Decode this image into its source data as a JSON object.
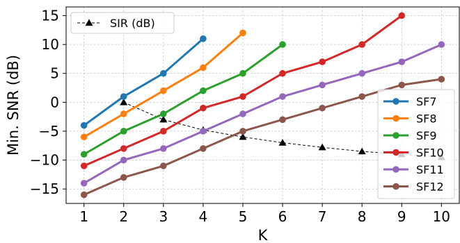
{
  "chart_data": {
    "type": "line",
    "title": "",
    "xlabel": "K",
    "ylabel": "Min. SNR (dB)",
    "xlim": [
      0.55,
      10.45
    ],
    "ylim": [
      -17.5,
      16.5
    ],
    "xticks": [
      1,
      2,
      3,
      4,
      5,
      6,
      7,
      8,
      9,
      10
    ],
    "yticks": [
      -15,
      -10,
      -5,
      0,
      5,
      10,
      15
    ],
    "grid": true,
    "legends": [
      {
        "placement": "upper-left",
        "entries": [
          "SIR (dB)"
        ]
      },
      {
        "placement": "lower-right",
        "entries": [
          "SF7",
          "SF8",
          "SF9",
          "SF10",
          "SF11",
          "SF12"
        ]
      }
    ],
    "series": [
      {
        "name": "SF7",
        "color": "#1f77b4",
        "marker": "circle",
        "x": [
          1,
          2,
          3,
          4
        ],
        "values": [
          -4,
          1,
          5,
          11
        ]
      },
      {
        "name": "SF8",
        "color": "#ff7f0e",
        "marker": "circle",
        "x": [
          1,
          2,
          3,
          4,
          5
        ],
        "values": [
          -6,
          -2,
          2,
          6,
          12
        ]
      },
      {
        "name": "SF9",
        "color": "#2ca02c",
        "marker": "circle",
        "x": [
          1,
          2,
          3,
          4,
          5,
          6
        ],
        "values": [
          -9,
          -5,
          -2,
          2,
          5,
          10
        ]
      },
      {
        "name": "SF10",
        "color": "#d62728",
        "marker": "circle",
        "x": [
          1,
          2,
          3,
          4,
          5,
          6,
          7,
          8,
          9
        ],
        "values": [
          -11,
          -8,
          -5,
          -1,
          1,
          5,
          7,
          10,
          15
        ]
      },
      {
        "name": "SF11",
        "color": "#9467bd",
        "marker": "circle",
        "x": [
          1,
          2,
          3,
          4,
          5,
          6,
          7,
          8,
          9,
          10
        ],
        "values": [
          -14,
          -10,
          -8,
          -5,
          -2,
          1,
          3,
          5,
          7,
          10
        ]
      },
      {
        "name": "SF12",
        "color": "#8c564b",
        "marker": "circle",
        "x": [
          1,
          2,
          3,
          4,
          5,
          6,
          7,
          8,
          9,
          10
        ],
        "values": [
          -16,
          -13,
          -11,
          -8,
          -5,
          -3,
          -1,
          1,
          3,
          4
        ]
      },
      {
        "name": "SIR (dB)",
        "color": "#000000",
        "marker": "triangle",
        "style": "dashed",
        "x": [
          2,
          3,
          4,
          5,
          6,
          7,
          8,
          9,
          10
        ],
        "values": [
          0,
          -3,
          -4.8,
          -6,
          -7,
          -7.8,
          -8.5,
          -9,
          -9.5
        ]
      }
    ]
  }
}
